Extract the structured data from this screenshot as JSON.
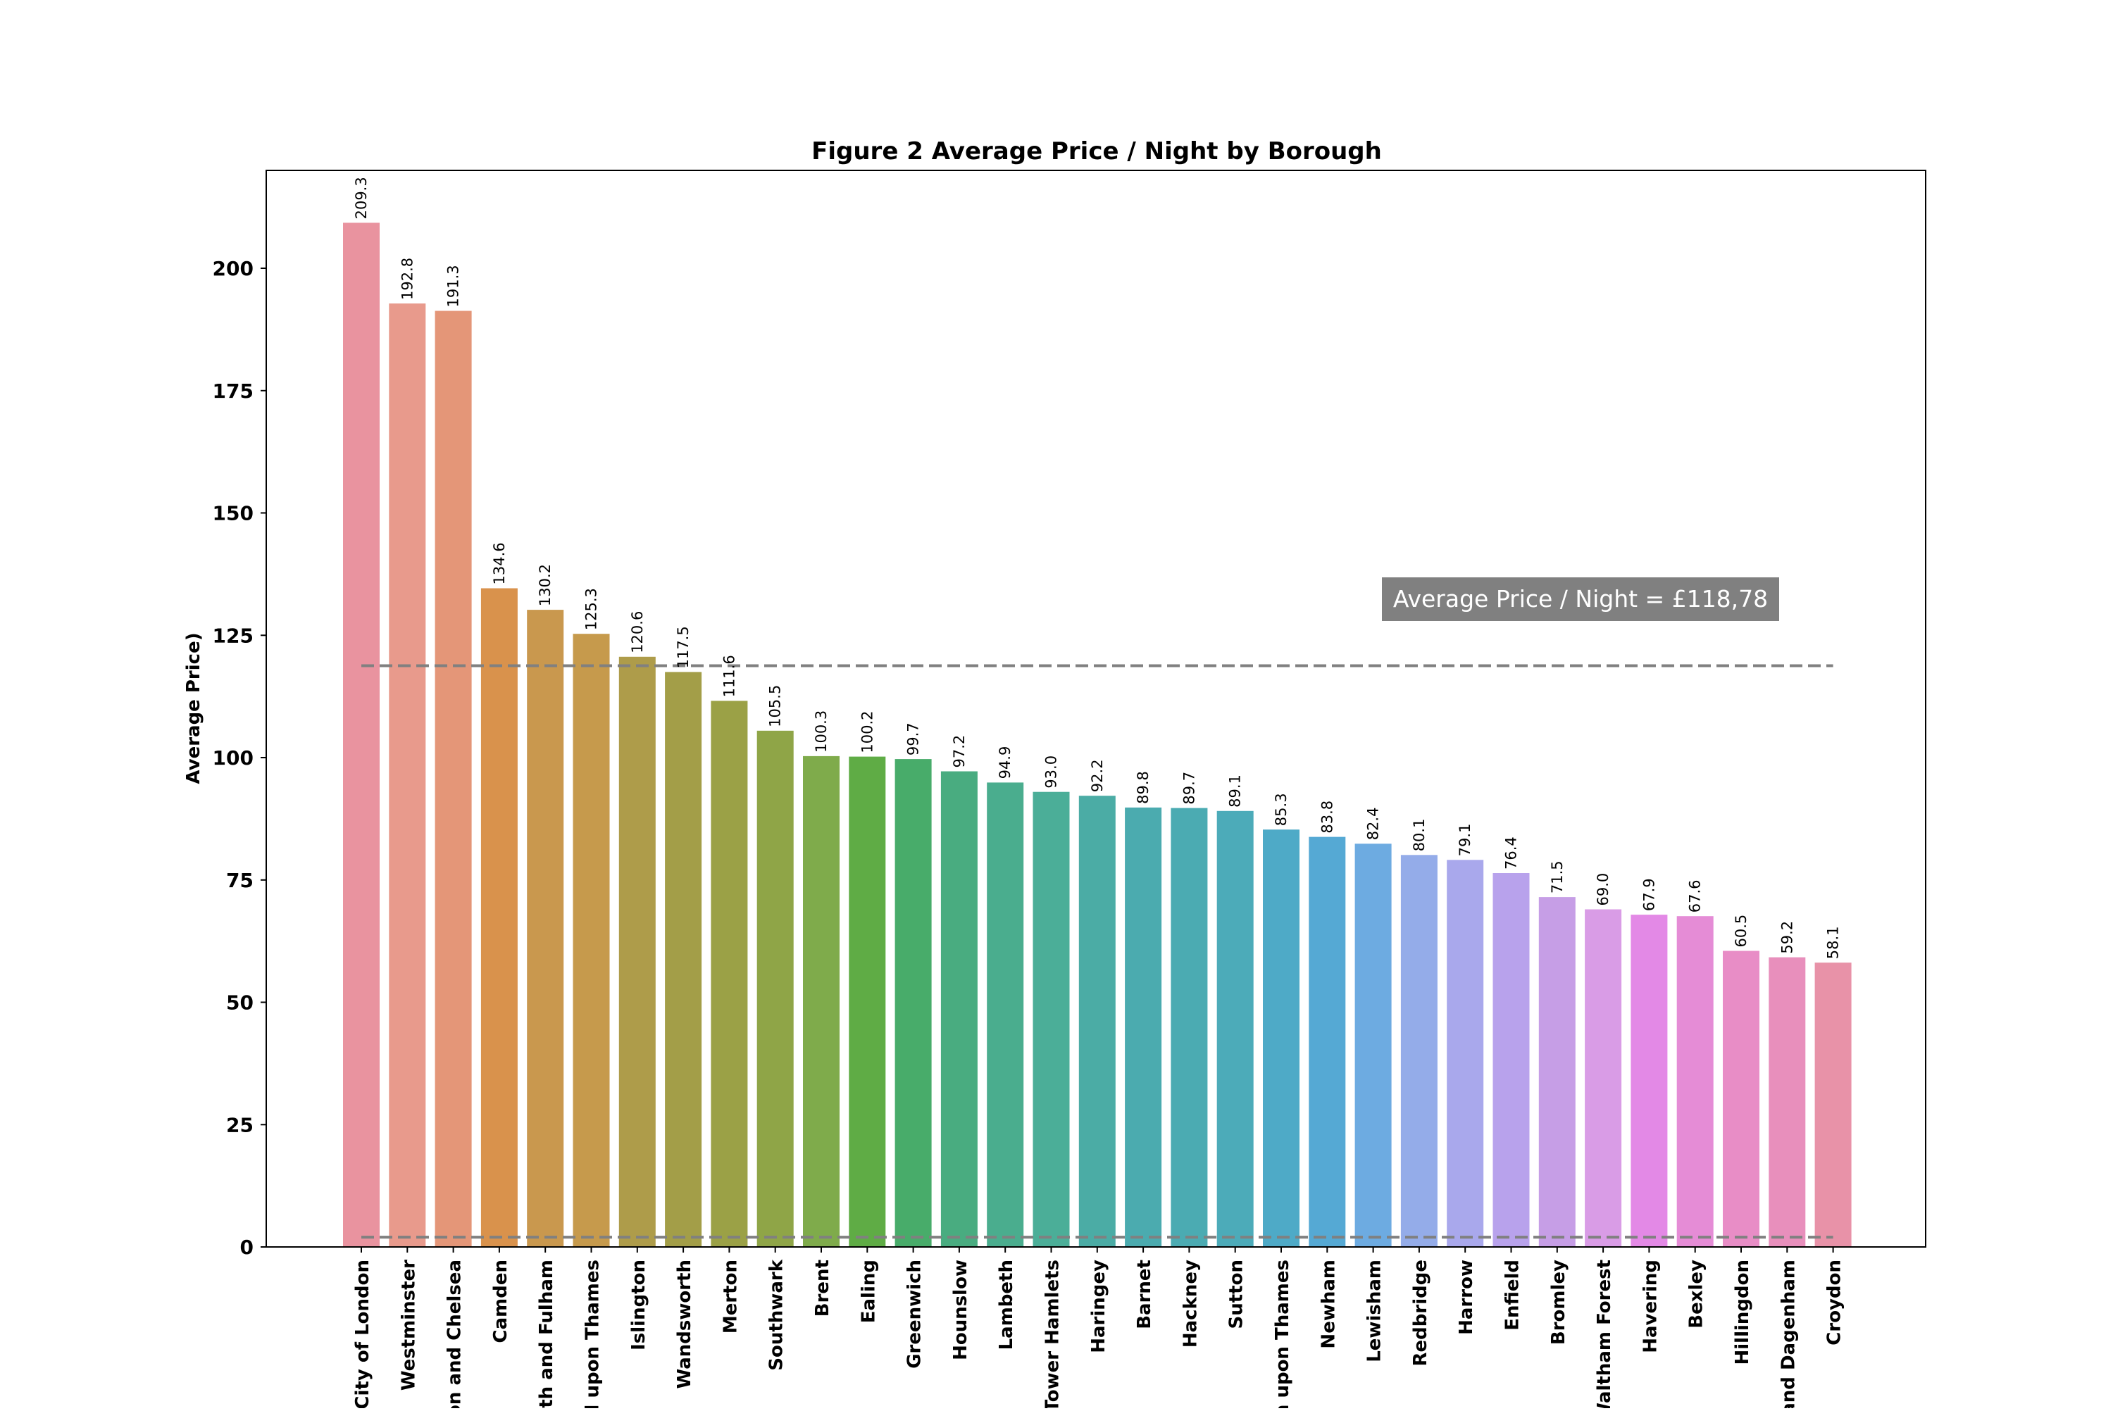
{
  "chart_data": {
    "type": "bar",
    "title": "Figure 2 Average Price / Night by Borough",
    "xlabel": "",
    "ylabel": "Average Price)",
    "ylim": [
      0,
      220
    ],
    "yticks": [
      0,
      25,
      50,
      75,
      100,
      125,
      150,
      175,
      200
    ],
    "grid": false,
    "categories": [
      "City of London",
      "Westminster",
      "on and Chelsea",
      "Camden",
      "ith and Fulham",
      "d upon Thames",
      "Islington",
      "Wandsworth",
      "Merton",
      "Southwark",
      "Brent",
      "Ealing",
      "Greenwich",
      "Hounslow",
      "Lambeth",
      "Tower Hamlets",
      "Haringey",
      "Barnet",
      "Hackney",
      "Sutton",
      "n upon Thames",
      "Newham",
      "Lewisham",
      "Redbridge",
      "Harrow",
      "Enfield",
      "Bromley",
      "Waltham Forest",
      "Havering",
      "Bexley",
      "Hillingdon",
      "and Dagenham",
      "Croydon"
    ],
    "values": [
      209.3,
      192.8,
      191.3,
      134.6,
      130.2,
      125.3,
      120.6,
      117.5,
      111.6,
      105.5,
      100.3,
      100.2,
      99.7,
      97.2,
      94.9,
      93.0,
      92.2,
      89.8,
      89.7,
      89.1,
      85.3,
      83.8,
      82.4,
      80.1,
      79.1,
      76.4,
      71.5,
      69.0,
      67.9,
      67.6,
      60.5,
      59.2,
      58.1
    ],
    "data_labels": [
      "209.3",
      "192.8",
      "191.3",
      "134.6",
      "130.2",
      "125.3",
      "120.6",
      "117.5",
      "111.6",
      "105.5",
      "100.3",
      "100.2",
      "99.7",
      "97.2",
      "94.9",
      "93.0",
      "92.2",
      "89.8",
      "89.7",
      "89.1",
      "85.3",
      "83.8",
      "82.4",
      "80.1",
      "79.1",
      "76.4",
      "71.5",
      "69.0",
      "67.9",
      "67.6",
      "60.5",
      "59.2",
      "58.1"
    ],
    "colors": [
      "#e9939f",
      "#e89a8c",
      "#e49678",
      "#d9924c",
      "#c9984e",
      "#c69a4c",
      "#ae9c4a",
      "#a39e48",
      "#9ba146",
      "#8fa547",
      "#7fab4b",
      "#5fac45",
      "#48ac6a",
      "#49ac80",
      "#4aad8e",
      "#4bae98",
      "#4baca5",
      "#4babaf",
      "#4babb2",
      "#4cabb9",
      "#4eaac7",
      "#55a9d4",
      "#6dabe1",
      "#94ace9",
      "#a9a8ec",
      "#b8a2ec",
      "#c69ee6",
      "#d99ce6",
      "#e389e6",
      "#e58cd6",
      "#e88dc6",
      "#e88fbc",
      "#e892a8"
    ],
    "reference_lines": [
      {
        "value": 118.78,
        "style": "dashed",
        "color": "#808080"
      },
      {
        "value": 2,
        "style": "dashed",
        "color": "#808080"
      }
    ],
    "annotation": {
      "text": "Average Price / Night = £118,78",
      "background": "#808080",
      "color": "#ffffff"
    }
  }
}
